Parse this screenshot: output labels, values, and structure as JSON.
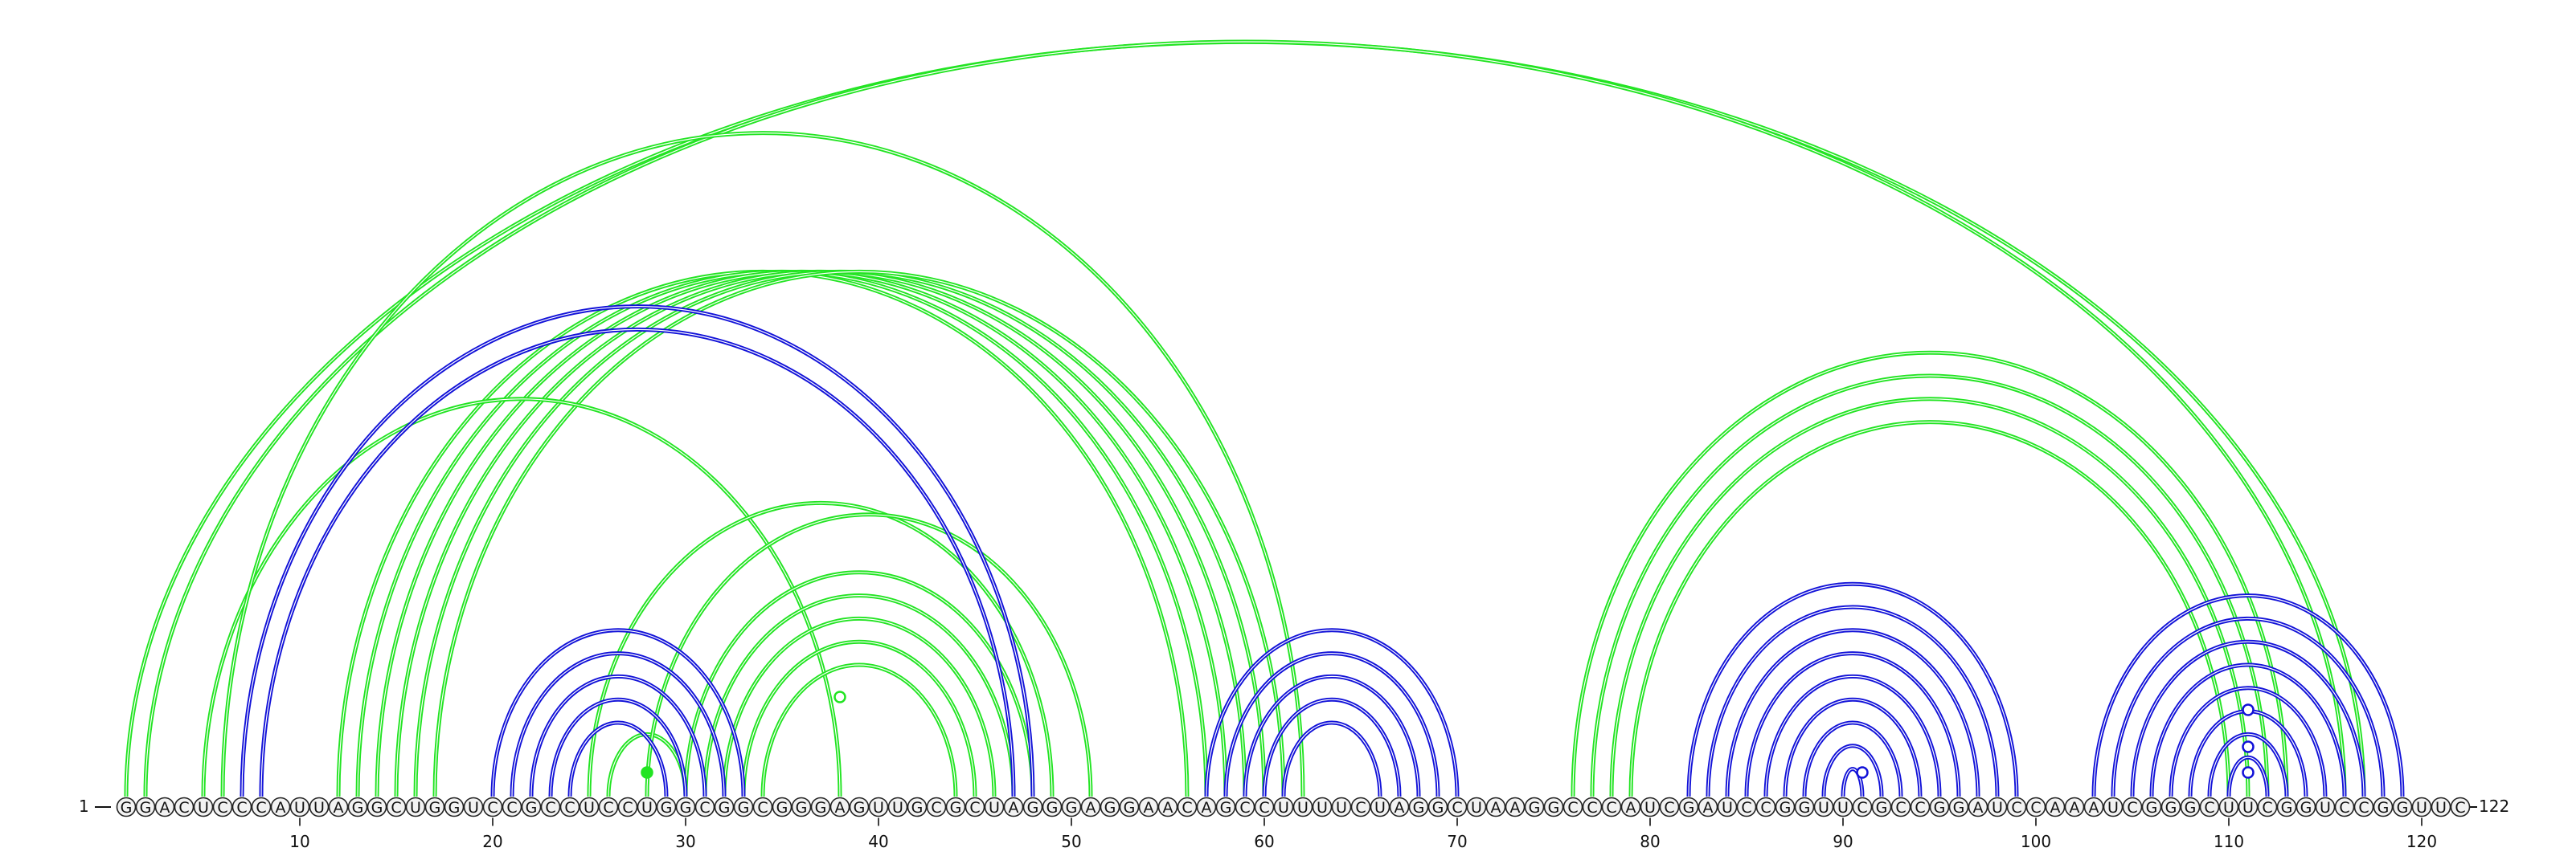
{
  "sequence": "GGACUCCCAUUAGGCUGGUCCGCCUCCUGGCGGCGGGAGUUGCGCUAGGGAGGAACAGCCUUUUCUAGGCUAAGGCCCAUCGAUCCGGUUCGCCGGAUCCAAAUCGGGCUUCGGUCCGGUUC",
  "length_start_label": "1",
  "length_end_label": "122",
  "axis_ticks": [
    10,
    20,
    30,
    40,
    50,
    60,
    70,
    80,
    90,
    100,
    110,
    120
  ],
  "colors": {
    "green": "#22e422",
    "blue": "#1212d8",
    "nucleotide_fill": "#f2f2f2",
    "nucleotide_stroke": "#222222",
    "text": "#111111"
  },
  "green_arcs": [
    {
      "i": 1,
      "j": 117
    },
    {
      "i": 2,
      "j": 116
    },
    {
      "i": 12,
      "j": 56
    },
    {
      "i": 13,
      "j": 57
    },
    {
      "i": 14,
      "j": 58
    },
    {
      "i": 15,
      "j": 59
    },
    {
      "i": 16,
      "j": 60
    },
    {
      "i": 17,
      "j": 61
    },
    {
      "i": 5,
      "j": 38
    },
    {
      "i": 6,
      "j": 62
    },
    {
      "i": 25,
      "j": 49
    },
    {
      "i": 26,
      "j": 30
    },
    {
      "i": 28,
      "j": 51
    },
    {
      "i": 30,
      "j": 48
    },
    {
      "i": 31,
      "j": 47
    },
    {
      "i": 32,
      "j": 46
    },
    {
      "i": 33,
      "j": 45
    },
    {
      "i": 34,
      "j": 44
    },
    {
      "i": 76,
      "j": 113
    },
    {
      "i": 77,
      "j": 112
    },
    {
      "i": 78,
      "j": 111
    },
    {
      "i": 79,
      "j": 110
    }
  ],
  "blue_arcs": [
    {
      "i": 7,
      "j": 48
    },
    {
      "i": 8,
      "j": 47
    },
    {
      "i": 20,
      "j": 33
    },
    {
      "i": 21,
      "j": 32
    },
    {
      "i": 22,
      "j": 31
    },
    {
      "i": 23,
      "j": 30
    },
    {
      "i": 24,
      "j": 29
    },
    {
      "i": 57,
      "j": 70
    },
    {
      "i": 58,
      "j": 69
    },
    {
      "i": 59,
      "j": 68
    },
    {
      "i": 60,
      "j": 67
    },
    {
      "i": 61,
      "j": 66
    },
    {
      "i": 82,
      "j": 99
    },
    {
      "i": 83,
      "j": 98
    },
    {
      "i": 84,
      "j": 97
    },
    {
      "i": 85,
      "j": 96
    },
    {
      "i": 86,
      "j": 95
    },
    {
      "i": 87,
      "j": 94
    },
    {
      "i": 88,
      "j": 93
    },
    {
      "i": 89,
      "j": 92
    },
    {
      "i": 90,
      "j": 91
    },
    {
      "i": 103,
      "j": 119
    },
    {
      "i": 104,
      "j": 118
    },
    {
      "i": 105,
      "j": 117
    },
    {
      "i": 106,
      "j": 116
    },
    {
      "i": 107,
      "j": 115
    },
    {
      "i": 108,
      "j": 114
    },
    {
      "i": 109,
      "j": 113
    },
    {
      "i": 110,
      "j": 112
    }
  ],
  "arc_markers": [
    {
      "pos": 38,
      "color": "green",
      "filled": false
    },
    {
      "pos": 28,
      "color": "green",
      "filled": true
    },
    {
      "pos": 91,
      "color": "blue",
      "filled": false
    },
    {
      "pos": 111,
      "color": "blue",
      "filled": false
    },
    {
      "pos": 111,
      "color": "blue",
      "filled": false
    },
    {
      "pos": 111,
      "color": "blue",
      "filled": false
    }
  ]
}
